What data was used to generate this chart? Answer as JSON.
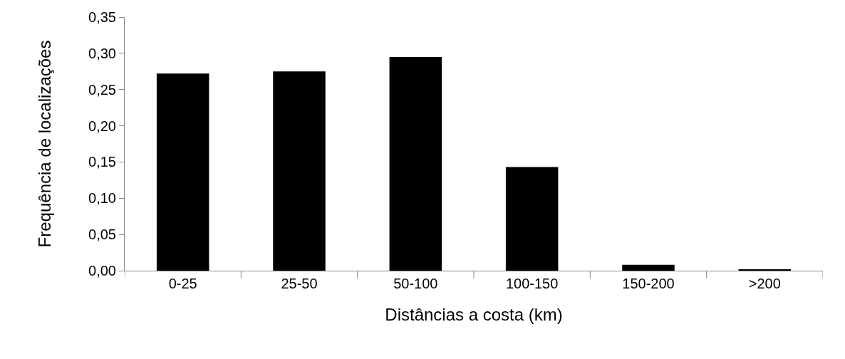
{
  "chart_data": {
    "type": "bar",
    "xlabel": "Distâncias a costa (km)",
    "ylabel": "Frequência de localizações",
    "categories": [
      "0-25",
      "25-50",
      "50-100",
      "100-150",
      "150-200",
      ">200"
    ],
    "values": [
      0.272,
      0.275,
      0.295,
      0.143,
      0.008,
      0.002
    ],
    "color": "#000000",
    "ylim": [
      0,
      0.35
    ],
    "yticks": [
      {
        "value": 0,
        "label": "0,00"
      },
      {
        "value": 0.05,
        "label": "0,05"
      },
      {
        "value": 0.1,
        "label": "0,10"
      },
      {
        "value": 0.15,
        "label": "0,15"
      },
      {
        "value": 0.2,
        "label": "0,20"
      },
      {
        "value": 0.25,
        "label": "0,25"
      },
      {
        "value": 0.3,
        "label": "0,30"
      },
      {
        "value": 0.35,
        "label": "0,35"
      }
    ]
  }
}
